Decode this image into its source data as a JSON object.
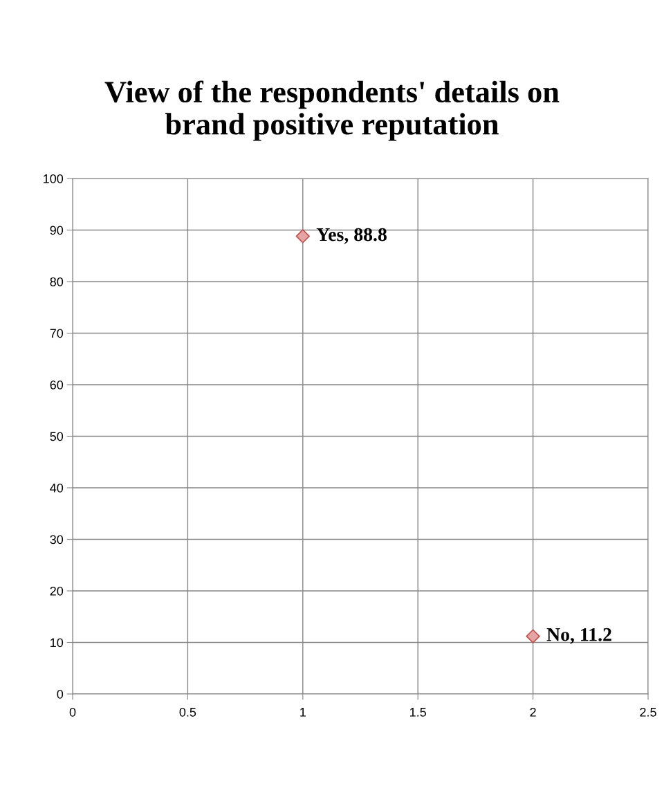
{
  "chart_data": {
    "type": "scatter",
    "title": "View of the respondents' details on\nbrand positive reputation",
    "x": [
      1,
      2
    ],
    "series": [
      {
        "color": "#e6a5a5",
        "values": [
          88.8,
          11.2
        ],
        "value_labels": [
          "Yes, 88.8",
          "No, 11.2"
        ]
      }
    ],
    "xlim": [
      0,
      2.5
    ],
    "xticks": [
      0,
      0.5,
      1,
      1.5,
      2,
      2.5
    ],
    "ylim": [
      0,
      100
    ],
    "yticks": [
      0,
      10,
      20,
      30,
      40,
      50,
      60,
      70,
      80,
      90,
      100
    ],
    "grid": true,
    "marker": "diamond",
    "legend": false
  }
}
